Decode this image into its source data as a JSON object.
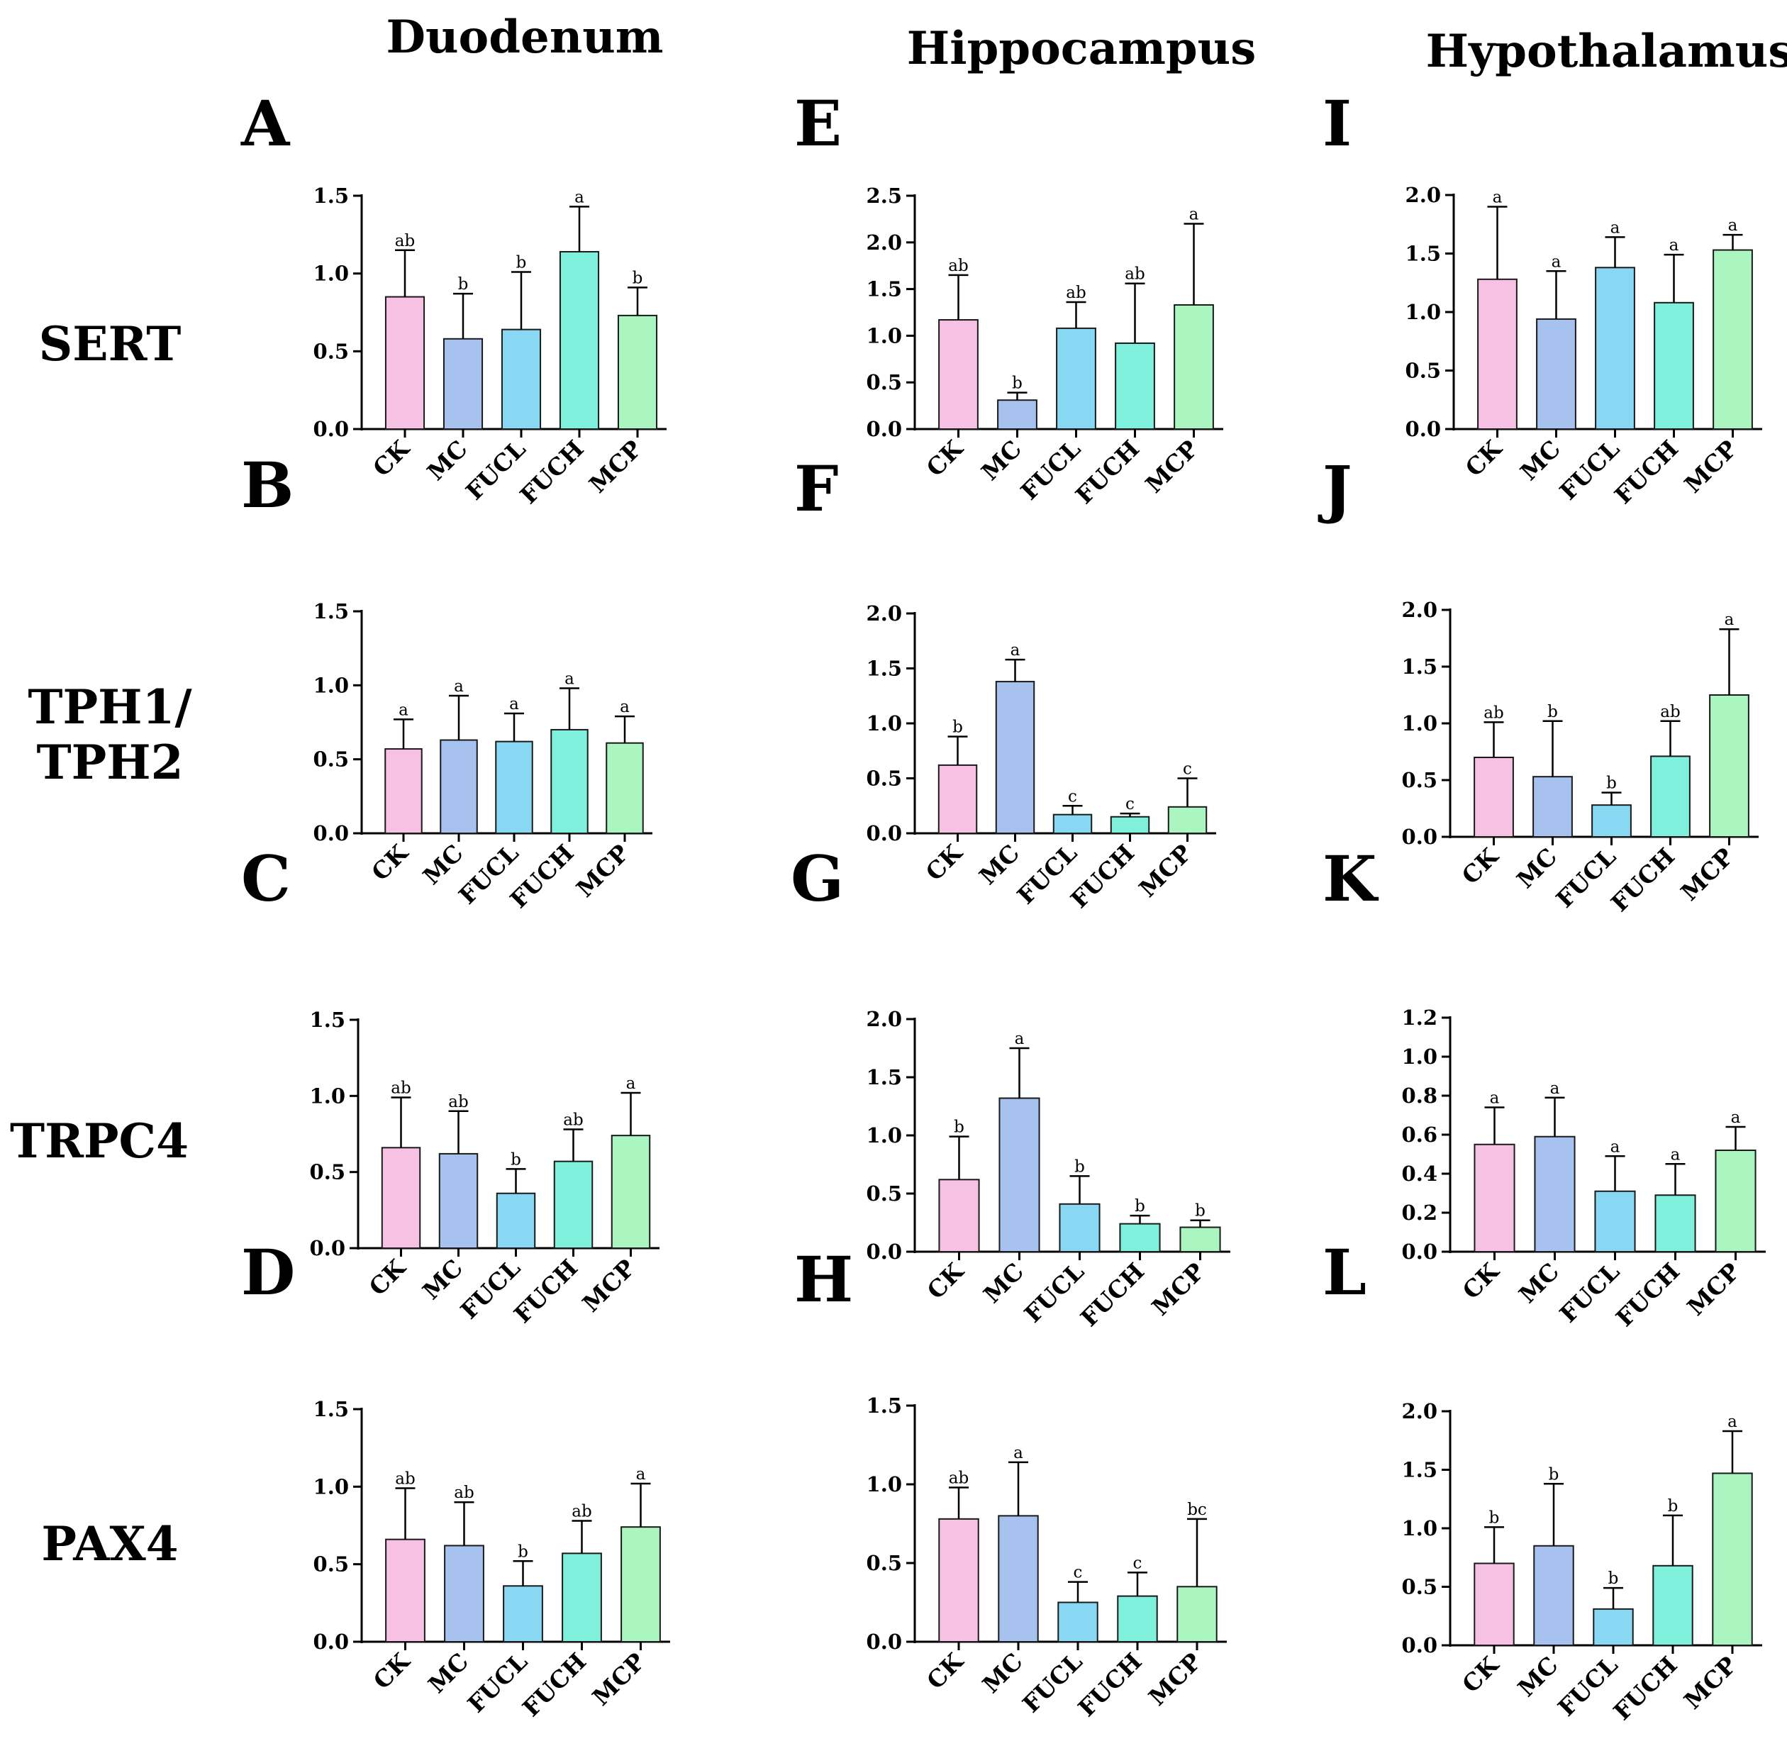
{
  "column_titles": [
    "Duodenum",
    "Hippocampus",
    "Hypothalamus"
  ],
  "row_labels": [
    "SERT",
    "TPH1/\nTPH2",
    "TRPC4",
    "PAX4"
  ],
  "colors": [
    "#f7c1e4",
    "#a8c2f0",
    "#88d8f4",
    "#7ff0dc",
    "#aaf5c0"
  ],
  "chart_data": [
    {
      "panel": "A",
      "type": "bar",
      "title": "Duodenum",
      "ylabel": "SERT",
      "categories": [
        "CK",
        "MC",
        "FUCL",
        "FUCH",
        "MCP"
      ],
      "values": [
        0.85,
        0.58,
        0.64,
        1.14,
        0.73
      ],
      "errors": [
        0.3,
        0.29,
        0.37,
        0.29,
        0.18
      ],
      "significance": [
        "ab",
        "b",
        "b",
        "a",
        "b"
      ],
      "ylim": [
        0,
        1.5
      ],
      "yticks": [
        "0.0",
        "0.5",
        "1.0",
        "1.5"
      ]
    },
    {
      "panel": "B",
      "type": "bar",
      "title": "Duodenum",
      "ylabel": "TPH1/TPH2",
      "categories": [
        "CK",
        "MC",
        "FUCL",
        "FUCH",
        "MCP"
      ],
      "values": [
        0.57,
        0.63,
        0.62,
        0.7,
        0.61
      ],
      "errors": [
        0.2,
        0.3,
        0.19,
        0.28,
        0.18
      ],
      "significance": [
        "a",
        "a",
        "a",
        "a",
        "a"
      ],
      "ylim": [
        0,
        1.5
      ],
      "yticks": [
        "0.0",
        "0.5",
        "1.0",
        "1.5"
      ]
    },
    {
      "panel": "C",
      "type": "bar",
      "title": "Duodenum",
      "ylabel": "TRPC4",
      "categories": [
        "CK",
        "MC",
        "FUCL",
        "FUCH",
        "MCP"
      ],
      "values": [
        0.66,
        0.62,
        0.36,
        0.57,
        0.74
      ],
      "errors": [
        0.33,
        0.28,
        0.16,
        0.21,
        0.28
      ],
      "significance": [
        "ab",
        "ab",
        "b",
        "ab",
        "a"
      ],
      "ylim": [
        0,
        1.5
      ],
      "yticks": [
        "0.0",
        "0.5",
        "1.0",
        "1.5"
      ]
    },
    {
      "panel": "D",
      "type": "bar",
      "title": "Duodenum",
      "ylabel": "PAX4",
      "categories": [
        "CK",
        "MC",
        "FUCL",
        "FUCH",
        "MCP"
      ],
      "values": [
        0.66,
        0.62,
        0.36,
        0.57,
        0.74
      ],
      "errors": [
        0.33,
        0.28,
        0.16,
        0.21,
        0.28
      ],
      "significance": [
        "ab",
        "ab",
        "b",
        "ab",
        "a"
      ],
      "ylim": [
        0,
        1.5
      ],
      "yticks": [
        "0.0",
        "0.5",
        "1.0",
        "1.5"
      ]
    },
    {
      "panel": "E",
      "type": "bar",
      "title": "Hippocampus",
      "ylabel": "SERT",
      "categories": [
        "CK",
        "MC",
        "FUCL",
        "FUCH",
        "MCP"
      ],
      "values": [
        1.17,
        0.31,
        1.08,
        0.92,
        1.33
      ],
      "errors": [
        0.48,
        0.08,
        0.28,
        0.64,
        0.87
      ],
      "significance": [
        "ab",
        "b",
        "ab",
        "ab",
        "a"
      ],
      "ylim": [
        0,
        2.5
      ],
      "yticks": [
        "0.0",
        "0.5",
        "1.0",
        "1.5",
        "2.0",
        "2.5"
      ]
    },
    {
      "panel": "F",
      "type": "bar",
      "title": "Hippocampus",
      "ylabel": "TPH1/TPH2",
      "categories": [
        "CK",
        "MC",
        "FUCL",
        "FUCH",
        "MCP"
      ],
      "values": [
        0.62,
        1.38,
        0.17,
        0.15,
        0.24
      ],
      "errors": [
        0.26,
        0.2,
        0.08,
        0.03,
        0.26
      ],
      "significance": [
        "b",
        "a",
        "c",
        "c",
        "c"
      ],
      "ylim": [
        0,
        2.0
      ],
      "yticks": [
        "0.0",
        "0.5",
        "1.0",
        "1.5",
        "2.0"
      ]
    },
    {
      "panel": "G",
      "type": "bar",
      "title": "Hippocampus",
      "ylabel": "TRPC4",
      "categories": [
        "CK",
        "MC",
        "FUCL",
        "FUCH",
        "MCP"
      ],
      "values": [
        0.62,
        1.32,
        0.41,
        0.24,
        0.21
      ],
      "errors": [
        0.37,
        0.43,
        0.24,
        0.07,
        0.06
      ],
      "significance": [
        "b",
        "a",
        "b",
        "b",
        "b"
      ],
      "ylim": [
        0,
        2.0
      ],
      "yticks": [
        "0.0",
        "0.5",
        "1.0",
        "1.5",
        "2.0"
      ]
    },
    {
      "panel": "H",
      "type": "bar",
      "title": "Hippocampus",
      "ylabel": "PAX4",
      "categories": [
        "CK",
        "MC",
        "FUCL",
        "FUCH",
        "MCP"
      ],
      "values": [
        0.78,
        0.8,
        0.25,
        0.29,
        0.35
      ],
      "errors": [
        0.2,
        0.34,
        0.13,
        0.15,
        0.43
      ],
      "significance": [
        "ab",
        "a",
        "c",
        "c",
        "bc"
      ],
      "ylim": [
        0,
        1.5
      ],
      "yticks": [
        "0.0",
        "0.5",
        "1.0",
        "1.5"
      ]
    },
    {
      "panel": "I",
      "type": "bar",
      "title": "Hypothalamus",
      "ylabel": "SERT",
      "categories": [
        "CK",
        "MC",
        "FUCL",
        "FUCH",
        "MCP"
      ],
      "values": [
        1.28,
        0.94,
        1.38,
        1.08,
        1.53
      ],
      "errors": [
        0.62,
        0.41,
        0.26,
        0.41,
        0.13
      ],
      "significance": [
        "a",
        "a",
        "a",
        "a",
        "a"
      ],
      "ylim": [
        0,
        2.0
      ],
      "yticks": [
        "0.0",
        "0.5",
        "1.0",
        "1.5",
        "2.0"
      ]
    },
    {
      "panel": "J",
      "type": "bar",
      "title": "Hypothalamus",
      "ylabel": "TPH1/TPH2",
      "categories": [
        "CK",
        "MC",
        "FUCL",
        "FUCH",
        "MCP"
      ],
      "values": [
        0.7,
        0.53,
        0.28,
        0.71,
        1.25
      ],
      "errors": [
        0.31,
        0.49,
        0.11,
        0.31,
        0.58
      ],
      "significance": [
        "ab",
        "b",
        "b",
        "ab",
        "a"
      ],
      "ylim": [
        0,
        2.0
      ],
      "yticks": [
        "0.0",
        "0.5",
        "1.0",
        "1.5",
        "2.0"
      ]
    },
    {
      "panel": "K",
      "type": "bar",
      "title": "Hypothalamus",
      "ylabel": "TRPC4",
      "categories": [
        "CK",
        "MC",
        "FUCL",
        "FUCH",
        "MCP"
      ],
      "values": [
        0.55,
        0.59,
        0.31,
        0.29,
        0.52
      ],
      "errors": [
        0.19,
        0.2,
        0.18,
        0.16,
        0.12
      ],
      "significance": [
        "a",
        "a",
        "a",
        "a",
        "a"
      ],
      "ylim": [
        0,
        1.2
      ],
      "yticks": [
        "0.0",
        "0.2",
        "0.4",
        "0.6",
        "0.8",
        "1.0",
        "1.2"
      ]
    },
    {
      "panel": "L",
      "type": "bar",
      "title": "Hypothalamus",
      "ylabel": "PAX4",
      "categories": [
        "CK",
        "MC",
        "FUCL",
        "FUCH",
        "MCP"
      ],
      "values": [
        0.7,
        0.85,
        0.31,
        0.68,
        1.47
      ],
      "errors": [
        0.31,
        0.53,
        0.18,
        0.43,
        0.36
      ],
      "significance": [
        "b",
        "b",
        "b",
        "b",
        "a"
      ],
      "ylim": [
        0,
        2.0
      ],
      "yticks": [
        "0.0",
        "0.5",
        "1.0",
        "1.5",
        "2.0"
      ]
    }
  ]
}
